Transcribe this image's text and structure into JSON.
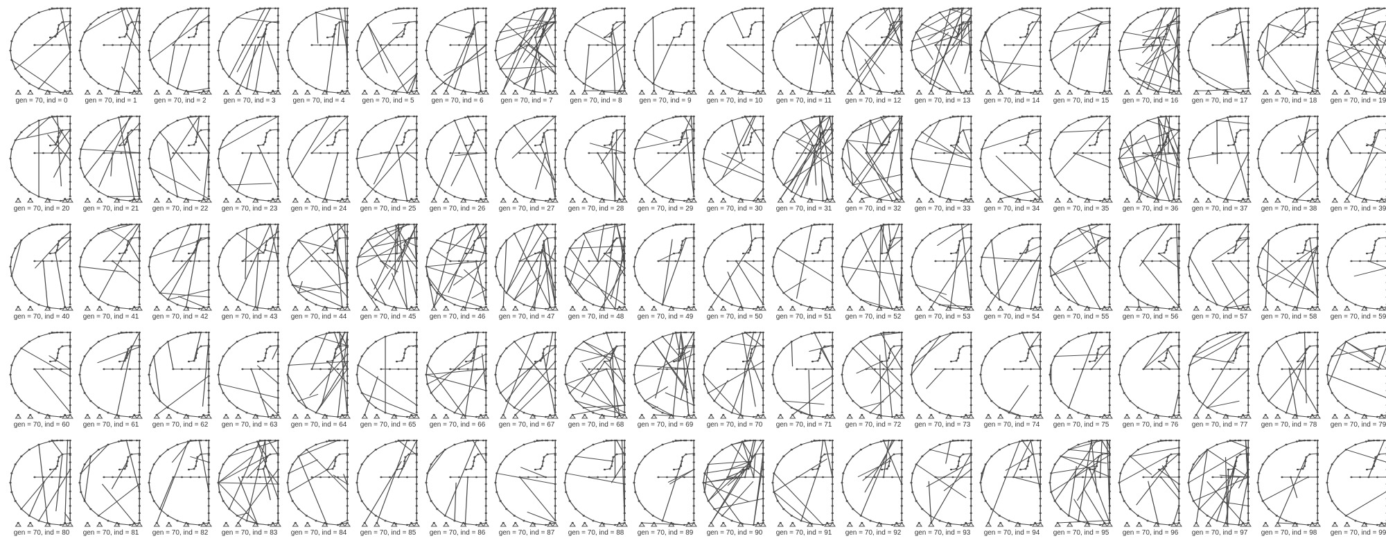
{
  "panels": [
    {
      "label": "gen = 70, ind = 0"
    },
    {
      "label": "gen = 70, ind = 1"
    },
    {
      "label": "gen = 70, ind = 2"
    },
    {
      "label": "gen = 70, ind = 3"
    },
    {
      "label": "gen = 70, ind = 4"
    },
    {
      "label": "gen = 70, ind = 5"
    },
    {
      "label": "gen = 70, ind = 6"
    },
    {
      "label": "gen = 70, ind = 7"
    },
    {
      "label": "gen = 70, ind = 8"
    },
    {
      "label": "gen = 70, ind = 9"
    },
    {
      "label": "gen = 70, ind = 10"
    },
    {
      "label": "gen = 70, ind = 11"
    },
    {
      "label": "gen = 70, ind = 12"
    },
    {
      "label": "gen = 70, ind = 13"
    },
    {
      "label": "gen = 70, ind = 14"
    },
    {
      "label": "gen = 70, ind = 15"
    },
    {
      "label": "gen = 70, ind = 16"
    },
    {
      "label": "gen = 70, ind = 17"
    },
    {
      "label": "gen = 70, ind = 18"
    },
    {
      "label": "gen = 70, ind = 19"
    },
    {
      "label": "gen = 70, ind = 20"
    },
    {
      "label": "gen = 70, ind = 21"
    },
    {
      "label": "gen = 70, ind = 22"
    },
    {
      "label": "gen = 70, ind = 23"
    },
    {
      "label": "gen = 70, ind = 24"
    },
    {
      "label": "gen = 70, ind = 25"
    },
    {
      "label": "gen = 70, ind = 26"
    },
    {
      "label": "gen = 70, ind = 27"
    },
    {
      "label": "gen = 70, ind = 28"
    },
    {
      "label": "gen = 70, ind = 29"
    },
    {
      "label": "gen = 70, ind = 30"
    },
    {
      "label": "gen = 70, ind = 31"
    },
    {
      "label": "gen = 70, ind = 32"
    },
    {
      "label": "gen = 70, ind = 33"
    },
    {
      "label": "gen = 70, ind = 34"
    },
    {
      "label": "gen = 70, ind = 35"
    },
    {
      "label": "gen = 70, ind = 36"
    },
    {
      "label": "gen = 70, ind = 37"
    },
    {
      "label": "gen = 70, ind = 38"
    },
    {
      "label": "gen = 70, ind = 39"
    },
    {
      "label": "gen = 70, ind = 40"
    },
    {
      "label": "gen = 70, ind = 41"
    },
    {
      "label": "gen = 70, ind = 42"
    },
    {
      "label": "gen = 70, ind = 43"
    },
    {
      "label": "gen = 70, ind = 44"
    },
    {
      "label": "gen = 70, ind = 45"
    },
    {
      "label": "gen = 70, ind = 46"
    },
    {
      "label": "gen = 70, ind = 47"
    },
    {
      "label": "gen = 70, ind = 48"
    },
    {
      "label": "gen = 70, ind = 49"
    },
    {
      "label": "gen = 70, ind = 50"
    },
    {
      "label": "gen = 70, ind = 51"
    },
    {
      "label": "gen = 70, ind = 52"
    },
    {
      "label": "gen = 70, ind = 53"
    },
    {
      "label": "gen = 70, ind = 54"
    },
    {
      "label": "gen = 70, ind = 55"
    },
    {
      "label": "gen = 70, ind = 56"
    },
    {
      "label": "gen = 70, ind = 57"
    },
    {
      "label": "gen = 70, ind = 58"
    },
    {
      "label": "gen = 70, ind = 59"
    },
    {
      "label": "gen = 70, ind = 60"
    },
    {
      "label": "gen = 70, ind = 61"
    },
    {
      "label": "gen = 70, ind = 62"
    },
    {
      "label": "gen = 70, ind = 63"
    },
    {
      "label": "gen = 70, ind = 64"
    },
    {
      "label": "gen = 70, ind = 65"
    },
    {
      "label": "gen = 70, ind = 66"
    },
    {
      "label": "gen = 70, ind = 67"
    },
    {
      "label": "gen = 70, ind = 68"
    },
    {
      "label": "gen = 70, ind = 69"
    },
    {
      "label": "gen = 70, ind = 70"
    },
    {
      "label": "gen = 70, ind = 71"
    },
    {
      "label": "gen = 70, ind = 72"
    },
    {
      "label": "gen = 70, ind = 73"
    },
    {
      "label": "gen = 70, ind = 74"
    },
    {
      "label": "gen = 70, ind = 75"
    },
    {
      "label": "gen = 70, ind = 76"
    },
    {
      "label": "gen = 70, ind = 77"
    },
    {
      "label": "gen = 70, ind = 78"
    },
    {
      "label": "gen = 70, ind = 79"
    },
    {
      "label": "gen = 70, ind = 80"
    },
    {
      "label": "gen = 70, ind = 81"
    },
    {
      "label": "gen = 70, ind = 82"
    },
    {
      "label": "gen = 70, ind = 83"
    },
    {
      "label": "gen = 70, ind = 84"
    },
    {
      "label": "gen = 70, ind = 85"
    },
    {
      "label": "gen = 70, ind = 86"
    },
    {
      "label": "gen = 70, ind = 87"
    },
    {
      "label": "gen = 70, ind = 88"
    },
    {
      "label": "gen = 70, ind = 89"
    },
    {
      "label": "gen = 70, ind = 90"
    },
    {
      "label": "gen = 70, ind = 91"
    },
    {
      "label": "gen = 70, ind = 92"
    },
    {
      "label": "gen = 70, ind = 93"
    },
    {
      "label": "gen = 70, ind = 94"
    },
    {
      "label": "gen = 70, ind = 95"
    },
    {
      "label": "gen = 70, ind = 96"
    },
    {
      "label": "gen = 70, ind = 97"
    },
    {
      "label": "gen = 70, ind = 98"
    },
    {
      "label": "gen = 70, ind = 99"
    }
  ],
  "colors": {
    "edge": "#4a4a4a",
    "node": "#4a4a4a",
    "caption": "#333333",
    "background": "#ffffff"
  }
}
